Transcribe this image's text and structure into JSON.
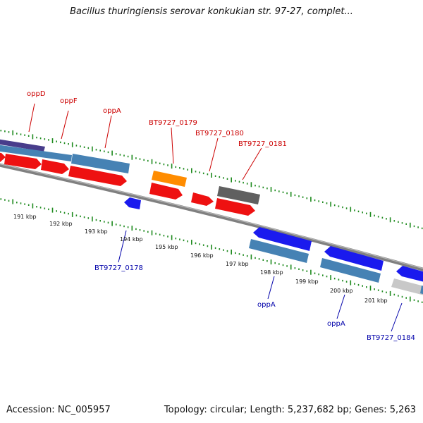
{
  "title": "Bacillus thuringiensis serovar konkukian str. 97-27, complet...",
  "footer": {
    "accession": "Accession: NC_005957",
    "summary": "Topology: circular; Length: 5,237,682 bp; Genes: 5,263"
  },
  "colors": {
    "backbone": "#808080",
    "tick": "#1e8a1e",
    "forward_label": "#cc0000",
    "reverse_label": "#0000aa",
    "gene_red": "#ee1111",
    "gene_steel": "#4682b4",
    "gene_indigo": "#483d8b",
    "gene_orange": "#ff8c00",
    "gene_gray": "#606060",
    "gene_blue": "#1a1aee",
    "gene_light": "#c8c8c8"
  },
  "kbp_labels": [
    "191 kbp",
    "192 kbp",
    "193 kbp",
    "194 kbp",
    "195 kbp",
    "196 kbp",
    "197 kbp",
    "198 kbp",
    "199 kbp",
    "200 kbp",
    "201 kbp"
  ],
  "forward_labels": [
    {
      "text": "oppD"
    },
    {
      "text": "oppF"
    },
    {
      "text": "oppA"
    },
    {
      "text": "BT9727_0179"
    },
    {
      "text": "BT9727_0180"
    },
    {
      "text": "BT9727_0181"
    }
  ],
  "reverse_labels": [
    {
      "text": "BT9727_0178"
    },
    {
      "text": "oppA"
    },
    {
      "text": "oppA"
    },
    {
      "text": "BT9727_0184"
    }
  ]
}
